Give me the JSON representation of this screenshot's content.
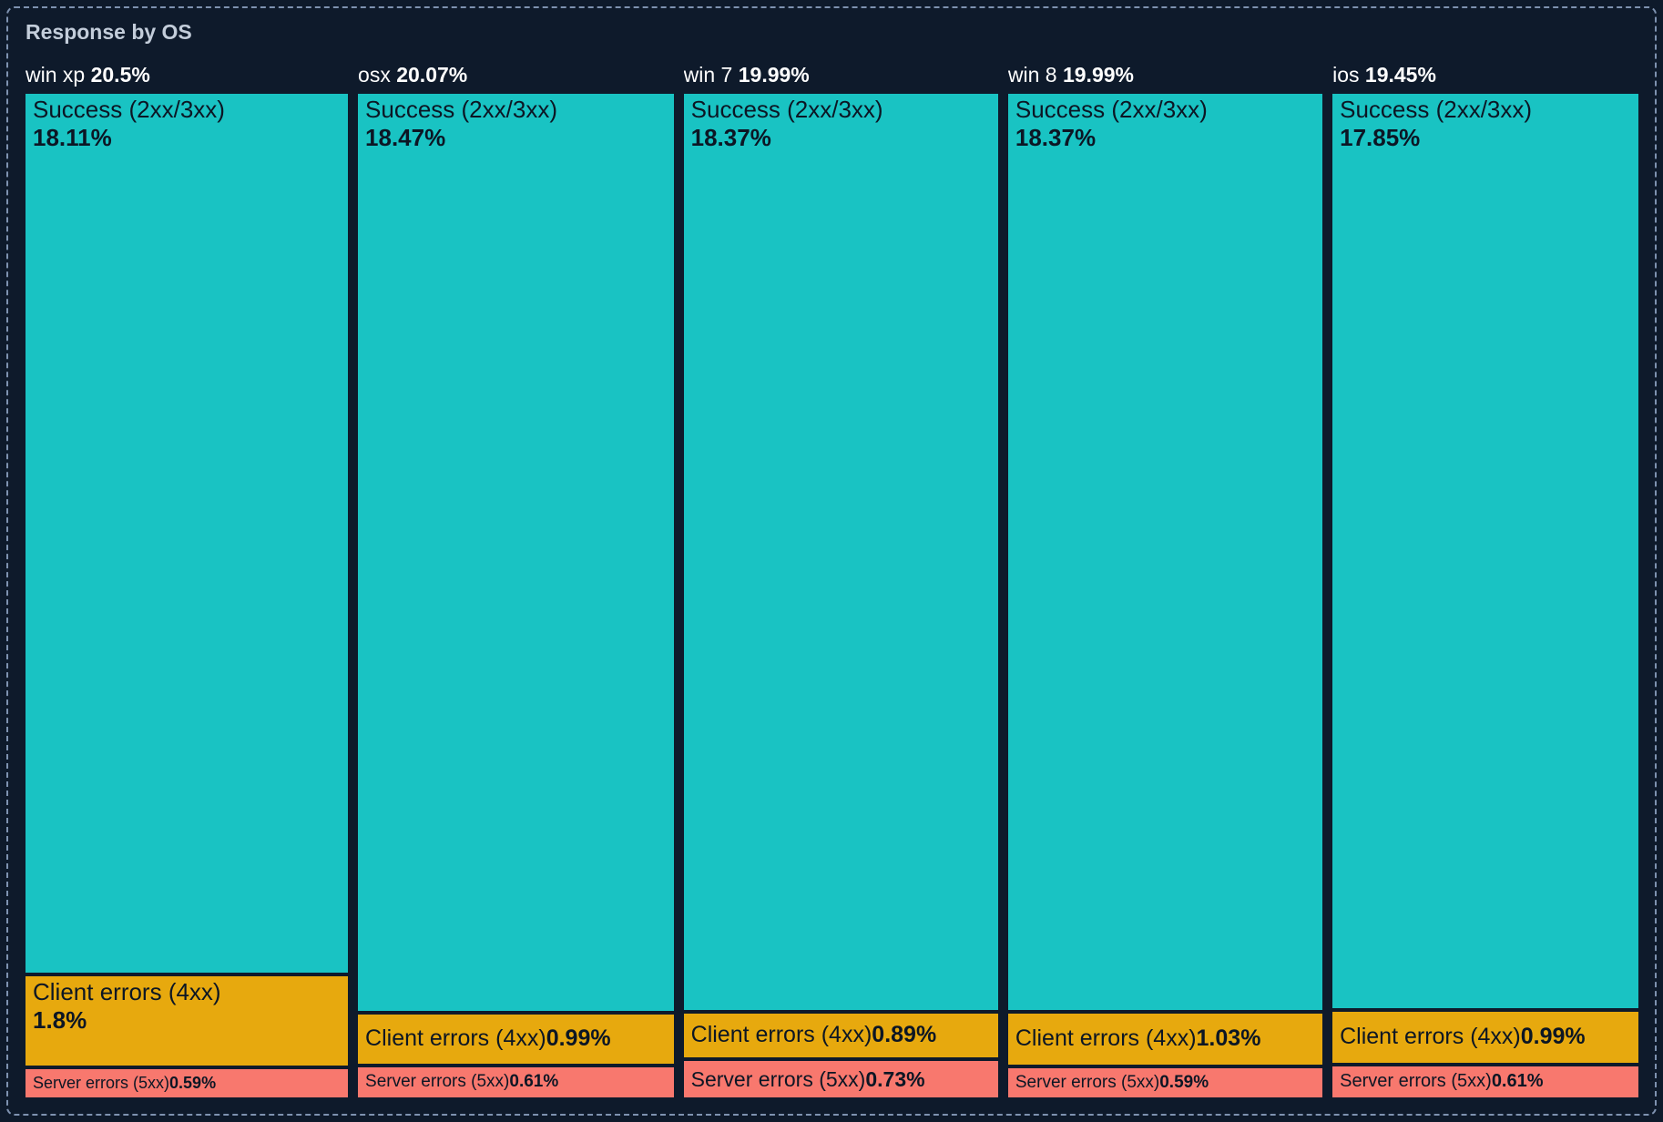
{
  "chart_data": {
    "type": "treemap",
    "title": "Response by OS",
    "layout": "mosaic-columns",
    "value_suffix": "%",
    "series_colors": {
      "success": "#19c3c3",
      "client_errors": "#e7a90e",
      "server_errors": "#f8786e"
    },
    "theme": {
      "background": "#0e1a2b",
      "panel_border": "#7e92b0",
      "title_color": "#c3cdda",
      "header_text": "#ffffff",
      "segment_text": "#0c1624"
    },
    "columns": [
      {
        "os": "win xp",
        "total": 20.5,
        "total_label": "20.5%",
        "segments": [
          {
            "series": "success",
            "name": "Success (2xx/3xx)",
            "value": 18.11,
            "label": "18.11%"
          },
          {
            "series": "client_errors",
            "name": "Client errors (4xx)",
            "value": 1.8,
            "label": "1.8%"
          },
          {
            "series": "server_errors",
            "name": "Server errors (5xx)",
            "value": 0.59,
            "label": "0.59%"
          }
        ]
      },
      {
        "os": "osx",
        "total": 20.07,
        "total_label": "20.07%",
        "segments": [
          {
            "series": "success",
            "name": "Success (2xx/3xx)",
            "value": 18.47,
            "label": "18.47%"
          },
          {
            "series": "client_errors",
            "name": "Client errors (4xx)",
            "value": 0.99,
            "label": "0.99%"
          },
          {
            "series": "server_errors",
            "name": "Server errors (5xx)",
            "value": 0.61,
            "label": "0.61%"
          }
        ]
      },
      {
        "os": "win 7",
        "total": 19.99,
        "total_label": "19.99%",
        "segments": [
          {
            "series": "success",
            "name": "Success (2xx/3xx)",
            "value": 18.37,
            "label": "18.37%"
          },
          {
            "series": "client_errors",
            "name": "Client errors (4xx)",
            "value": 0.89,
            "label": "0.89%"
          },
          {
            "series": "server_errors",
            "name": "Server errors (5xx)",
            "value": 0.73,
            "label": "0.73%"
          }
        ]
      },
      {
        "os": "win 8",
        "total": 19.99,
        "total_label": "19.99%",
        "segments": [
          {
            "series": "success",
            "name": "Success (2xx/3xx)",
            "value": 18.37,
            "label": "18.37%"
          },
          {
            "series": "client_errors",
            "name": "Client errors (4xx)",
            "value": 1.03,
            "label": "1.03%"
          },
          {
            "series": "server_errors",
            "name": "Server errors (5xx)",
            "value": 0.59,
            "label": "0.59%"
          }
        ]
      },
      {
        "os": "ios",
        "total": 19.45,
        "total_label": "19.45%",
        "segments": [
          {
            "series": "success",
            "name": "Success (2xx/3xx)",
            "value": 17.85,
            "label": "17.85%"
          },
          {
            "series": "client_errors",
            "name": "Client errors (4xx)",
            "value": 0.99,
            "label": "0.99%"
          },
          {
            "series": "server_errors",
            "name": "Server errors (5xx)",
            "value": 0.61,
            "label": "0.61%"
          }
        ]
      }
    ]
  }
}
